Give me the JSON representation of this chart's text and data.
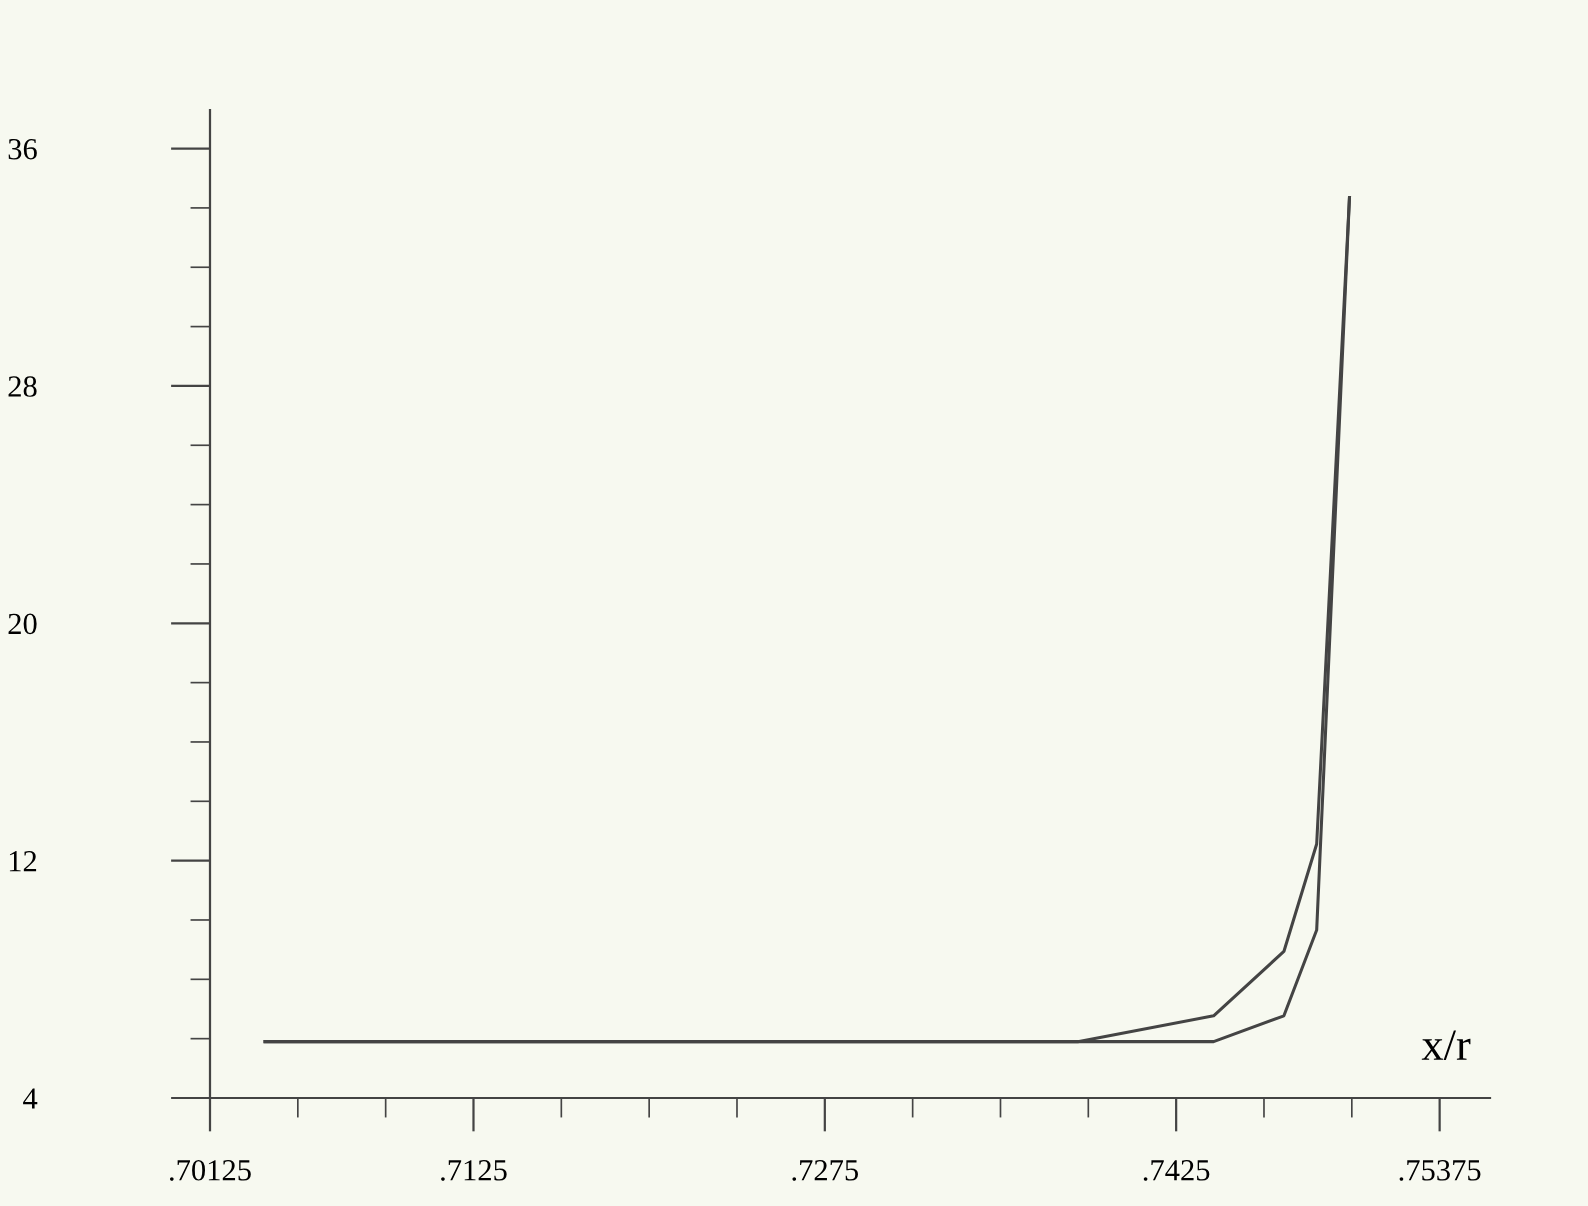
{
  "chart_data": {
    "type": "line",
    "xlabel": "x/r",
    "series": [
      {
        "color": "#444444",
        "x": [
          0.7036,
          0.7383,
          0.7441,
          0.7471,
          0.7485,
          0.7499
        ],
        "values": [
          5.9,
          5.9,
          6.77,
          8.94,
          12.56,
          34.35
        ]
      },
      {
        "color": "#444444",
        "x": [
          0.7036,
          0.7383,
          0.7441,
          0.7471,
          0.7485,
          0.7499
        ],
        "values": [
          5.9,
          5.9,
          5.9,
          6.77,
          9.66,
          34.35
        ]
      }
    ],
    "xlim": [
      0.70125,
      0.7559
    ],
    "ylim": [
      4,
      37.3
    ],
    "xticks": [
      {
        "value": 0.70125,
        "label": ".70125"
      },
      {
        "value": 0.705,
        "label": null
      },
      {
        "value": 0.70875,
        "label": null
      },
      {
        "value": 0.7125,
        "label": ".7125"
      },
      {
        "value": 0.71625,
        "label": null
      },
      {
        "value": 0.72,
        "label": null
      },
      {
        "value": 0.72375,
        "label": null
      },
      {
        "value": 0.7275,
        "label": ".7275"
      },
      {
        "value": 0.73125,
        "label": null
      },
      {
        "value": 0.735,
        "label": null
      },
      {
        "value": 0.73875,
        "label": null
      },
      {
        "value": 0.7425,
        "label": ".7425"
      },
      {
        "value": 0.74625,
        "label": null
      },
      {
        "value": 0.75,
        "label": null
      },
      {
        "value": 0.75375,
        "label": ".75375"
      }
    ],
    "yticks": [
      4,
      {
        "value": 6,
        "label": null
      },
      {
        "value": 8,
        "label": null
      },
      {
        "value": 10,
        "label": null
      },
      12,
      {
        "value": 14,
        "label": null
      },
      {
        "value": 16,
        "label": null
      },
      {
        "value": 18,
        "label": null
      },
      20,
      {
        "value": 22,
        "label": null
      },
      {
        "value": 24,
        "label": null
      },
      {
        "value": 26,
        "label": null
      },
      28,
      {
        "value": 30,
        "label": null
      },
      {
        "value": 32,
        "label": null
      },
      {
        "value": 34,
        "label": null
      },
      36
    ],
    "grid": false,
    "legend": false,
    "marker": "none",
    "line_style": "solid"
  }
}
